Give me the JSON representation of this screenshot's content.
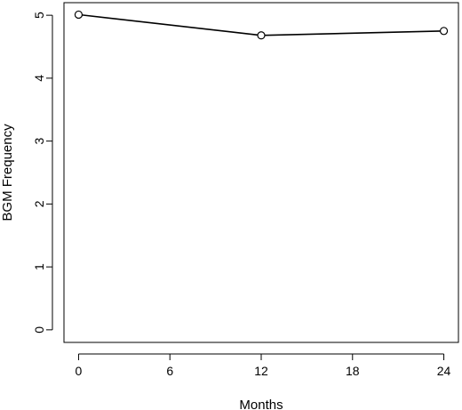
{
  "chart_data": {
    "type": "line",
    "title": "",
    "xlabel": "Months",
    "ylabel": "BGM Frequency",
    "x": [
      0,
      12,
      24
    ],
    "series": [
      {
        "values": [
          5.01,
          4.68,
          4.75
        ]
      }
    ],
    "xticks": [
      0,
      6,
      12,
      18,
      24
    ],
    "xtick_labels": [
      "0",
      "6",
      "12",
      "18",
      "24"
    ],
    "yticks": [
      0,
      1,
      2,
      3,
      4,
      5
    ],
    "ytick_labels": [
      "0",
      "1",
      "2",
      "3",
      "4",
      "5"
    ],
    "xlim": [
      -0.96,
      24.96
    ],
    "ylim": [
      -0.2,
      5.2
    ],
    "marker": "open-circle",
    "line_color": "#000000",
    "grid": false,
    "legend": "none"
  }
}
